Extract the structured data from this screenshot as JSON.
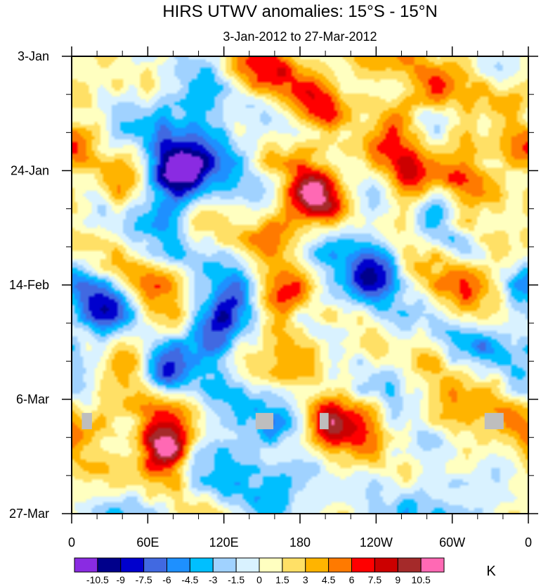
{
  "chart_data": {
    "type": "heatmap",
    "title": "HIRS UTWV anomalies: 15°S - 15°N",
    "subtitle": "3-Jan-2012 to 27-Mar-2012",
    "xlabel": "",
    "ylabel": "",
    "x_ticks": [
      "0",
      "60E",
      "120E",
      "180",
      "120W",
      "60W",
      "0"
    ],
    "y_ticks": [
      "3-Jan",
      "24-Jan",
      "14-Feb",
      "6-Mar",
      "27-Mar"
    ],
    "colorbar": {
      "unit": "K",
      "labels": [
        "-10.5",
        "-9",
        "-7.5",
        "-6",
        "-4.5",
        "-3",
        "-1.5",
        "0",
        "1.5",
        "3",
        "4.5",
        "6",
        "7.5",
        "9",
        "10.5"
      ],
      "colors": [
        "#8a2be2",
        "#00008b",
        "#0000cd",
        "#4169e1",
        "#1e90ff",
        "#00bfff",
        "#a0d2ff",
        "#d9f2ff",
        "#ffffc0",
        "#ffe066",
        "#ffb400",
        "#ff7a00",
        "#ff0000",
        "#cc0000",
        "#a52a2a",
        "#ff69b4"
      ]
    },
    "missing_color": "#bebebe",
    "features": [
      {
        "lon": 12,
        "day": 67,
        "value": -0.1,
        "missing": true,
        "width_deg": 8,
        "height_days": 3
      },
      {
        "lon": 152,
        "day": 67,
        "value": -0.1,
        "missing": true,
        "width_deg": 14,
        "height_days": 3
      },
      {
        "lon": 199,
        "day": 67,
        "value": -0.1,
        "missing": true,
        "width_deg": 7,
        "height_days": 3
      },
      {
        "lon": 333,
        "day": 67,
        "value": -0.1,
        "missing": true,
        "width_deg": 15,
        "height_days": 3
      },
      {
        "lon": 195,
        "day": 25,
        "value": 11.5
      },
      {
        "lon": 205,
        "day": 70,
        "value": 11.0
      },
      {
        "lon": 72,
        "day": 71,
        "value": 11.0
      },
      {
        "lon": 85,
        "day": 21,
        "value": -9.5
      },
      {
        "lon": 113,
        "day": 50,
        "value": -9.0
      },
      {
        "lon": 72,
        "day": 57,
        "value": -9.0
      },
      {
        "lon": 150,
        "day": 2,
        "value": 6.5
      },
      {
        "lon": 188,
        "day": 9,
        "value": 6.0
      },
      {
        "lon": 268,
        "day": 22,
        "value": 7.5
      },
      {
        "lon": 158,
        "day": 33,
        "value": 8.0
      },
      {
        "lon": 165,
        "day": 45,
        "value": 6.5
      },
      {
        "lon": 40,
        "day": 24,
        "value": 7.0
      },
      {
        "lon": 238,
        "day": 38,
        "value": -7.5
      },
      {
        "lon": 310,
        "day": 52,
        "value": -6.5
      },
      {
        "lon": 290,
        "day": 30,
        "value": -5.5
      },
      {
        "lon": 30,
        "day": 45,
        "value": -6.0
      }
    ]
  }
}
